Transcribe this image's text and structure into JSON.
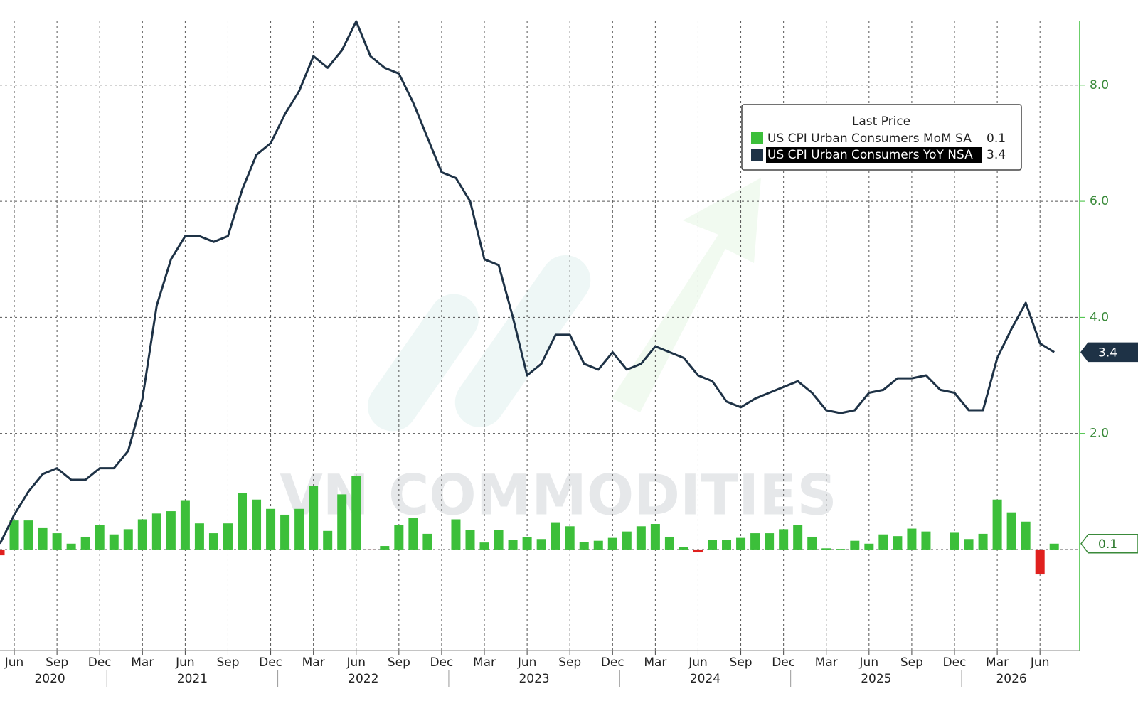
{
  "chart_data": {
    "type": "bar_line",
    "legend_title": "Last Price",
    "watermark": "VN COMMODITIES",
    "x": [
      "2020-05",
      "2020-06",
      "2020-07",
      "2020-08",
      "2020-09",
      "2020-10",
      "2020-11",
      "2020-12",
      "2021-01",
      "2021-02",
      "2021-03",
      "2021-04",
      "2021-05",
      "2021-06",
      "2021-07",
      "2021-08",
      "2021-09",
      "2021-10",
      "2021-11",
      "2021-12",
      "2022-01",
      "2022-02",
      "2022-03",
      "2022-04",
      "2022-05",
      "2022-06",
      "2022-07",
      "2022-08",
      "2022-09",
      "2022-10",
      "2022-11",
      "2022-12",
      "2023-01",
      "2023-02",
      "2023-03",
      "2023-04",
      "2023-05",
      "2023-06",
      "2023-07",
      "2023-08",
      "2023-09",
      "2023-10",
      "2023-11",
      "2023-12",
      "2024-01",
      "2024-02",
      "2024-03",
      "2024-04",
      "2024-05",
      "2024-06",
      "2024-07",
      "2024-08",
      "2024-09",
      "2024-10",
      "2024-11",
      "2024-12",
      "2025-01",
      "2025-02",
      "2025-03",
      "2025-04",
      "2025-05",
      "2025-06",
      "2025-07",
      "2025-08",
      "2025-09",
      "2025-10",
      "2025-11",
      "2025-12",
      "2026-01",
      "2026-02",
      "2026-03",
      "2026-04",
      "2026-05",
      "2026-06",
      "2026-07"
    ],
    "xticks": [
      {
        "value": "2020-06",
        "label": "Jun"
      },
      {
        "value": "2020-09",
        "label": "Sep"
      },
      {
        "value": "2020-12",
        "label": "Dec"
      },
      {
        "value": "2021-03",
        "label": "Mar"
      },
      {
        "value": "2021-06",
        "label": "Jun"
      },
      {
        "value": "2021-09",
        "label": "Sep"
      },
      {
        "value": "2021-12",
        "label": "Dec"
      },
      {
        "value": "2022-03",
        "label": "Mar"
      },
      {
        "value": "2022-06",
        "label": "Jun"
      },
      {
        "value": "2022-09",
        "label": "Sep"
      },
      {
        "value": "2022-12",
        "label": "Dec"
      },
      {
        "value": "2023-03",
        "label": "Mar"
      },
      {
        "value": "2023-06",
        "label": "Jun"
      },
      {
        "value": "2023-09",
        "label": "Sep"
      },
      {
        "value": "2023-12",
        "label": "Dec"
      },
      {
        "value": "2024-03",
        "label": "Mar"
      },
      {
        "value": "2024-06",
        "label": "Jun"
      },
      {
        "value": "2024-09",
        "label": "Sep"
      },
      {
        "value": "2024-12",
        "label": "Dec"
      },
      {
        "value": "2025-03",
        "label": "Mar"
      },
      {
        "value": "2025-06",
        "label": "Jun"
      },
      {
        "value": "2025-09",
        "label": "Sep"
      },
      {
        "value": "2025-12",
        "label": "Dec"
      },
      {
        "value": "2026-03",
        "label": "Mar"
      },
      {
        "value": "2026-06",
        "label": "Jun"
      }
    ],
    "years": [
      "2020",
      "2021",
      "2022",
      "2023",
      "2024",
      "2025",
      "2026"
    ],
    "ylim": [
      -1.74,
      9.1
    ],
    "yticks": [
      {
        "value": 2,
        "label": "2.0"
      },
      {
        "value": 4,
        "label": "4.0"
      },
      {
        "value": 6,
        "label": "6.0"
      },
      {
        "value": 8,
        "label": "8.0"
      }
    ],
    "grid": true,
    "series": [
      {
        "name": "US CPI Urban Consumers MoM SA",
        "type": "bar",
        "color": "#3cbf3a",
        "negative_color": "#e0201e",
        "last_label": "0.1",
        "values": [
          -0.1,
          0.5,
          0.5,
          0.38,
          0.28,
          0.1,
          0.22,
          0.42,
          0.26,
          0.35,
          0.52,
          0.62,
          0.66,
          0.85,
          0.45,
          0.28,
          0.45,
          0.97,
          0.86,
          0.7,
          0.6,
          0.7,
          1.1,
          0.32,
          0.95,
          1.27,
          -0.01,
          0.06,
          0.42,
          0.55,
          0.27,
          0,
          0.52,
          0.34,
          0.12,
          0.34,
          0.16,
          0.21,
          0.18,
          0.47,
          0.4,
          0.13,
          0.15,
          0.2,
          0.31,
          0.4,
          0.44,
          0.22,
          0.04,
          -0.05,
          0.17,
          0.16,
          0.2,
          0.28,
          0.28,
          0.35,
          0.42,
          0.22,
          0.02,
          0.01,
          0.15,
          0.1,
          0.26,
          0.23,
          0.36,
          0.31,
          0,
          0.3,
          0.18,
          0.27,
          0.86,
          0.64,
          0.48,
          -0.43,
          0.1
        ]
      },
      {
        "name": "US CPI Urban Consumers YoY NSA",
        "type": "line",
        "color": "#1e3246",
        "last_label": "3.4",
        "values": [
          0.1,
          0.6,
          1.0,
          1.3,
          1.4,
          1.2,
          1.2,
          1.4,
          1.4,
          1.7,
          2.6,
          4.2,
          5.0,
          5.4,
          5.4,
          5.3,
          5.4,
          6.2,
          6.8,
          7.0,
          7.5,
          7.9,
          8.5,
          8.3,
          8.6,
          9.1,
          8.5,
          8.3,
          8.2,
          7.7,
          7.1,
          6.5,
          6.4,
          6.0,
          5.0,
          4.9,
          4.0,
          3.0,
          3.2,
          3.7,
          3.7,
          3.2,
          3.1,
          3.4,
          3.1,
          3.2,
          3.5,
          3.4,
          3.3,
          3.0,
          2.9,
          2.55,
          2.45,
          2.6,
          2.7,
          2.8,
          2.9,
          2.7,
          2.4,
          2.35,
          2.4,
          2.7,
          2.75,
          2.95,
          2.95,
          3.0,
          2.75,
          2.7,
          2.4,
          2.4,
          3.3,
          3.8,
          4.25,
          3.55,
          3.4
        ]
      }
    ]
  }
}
